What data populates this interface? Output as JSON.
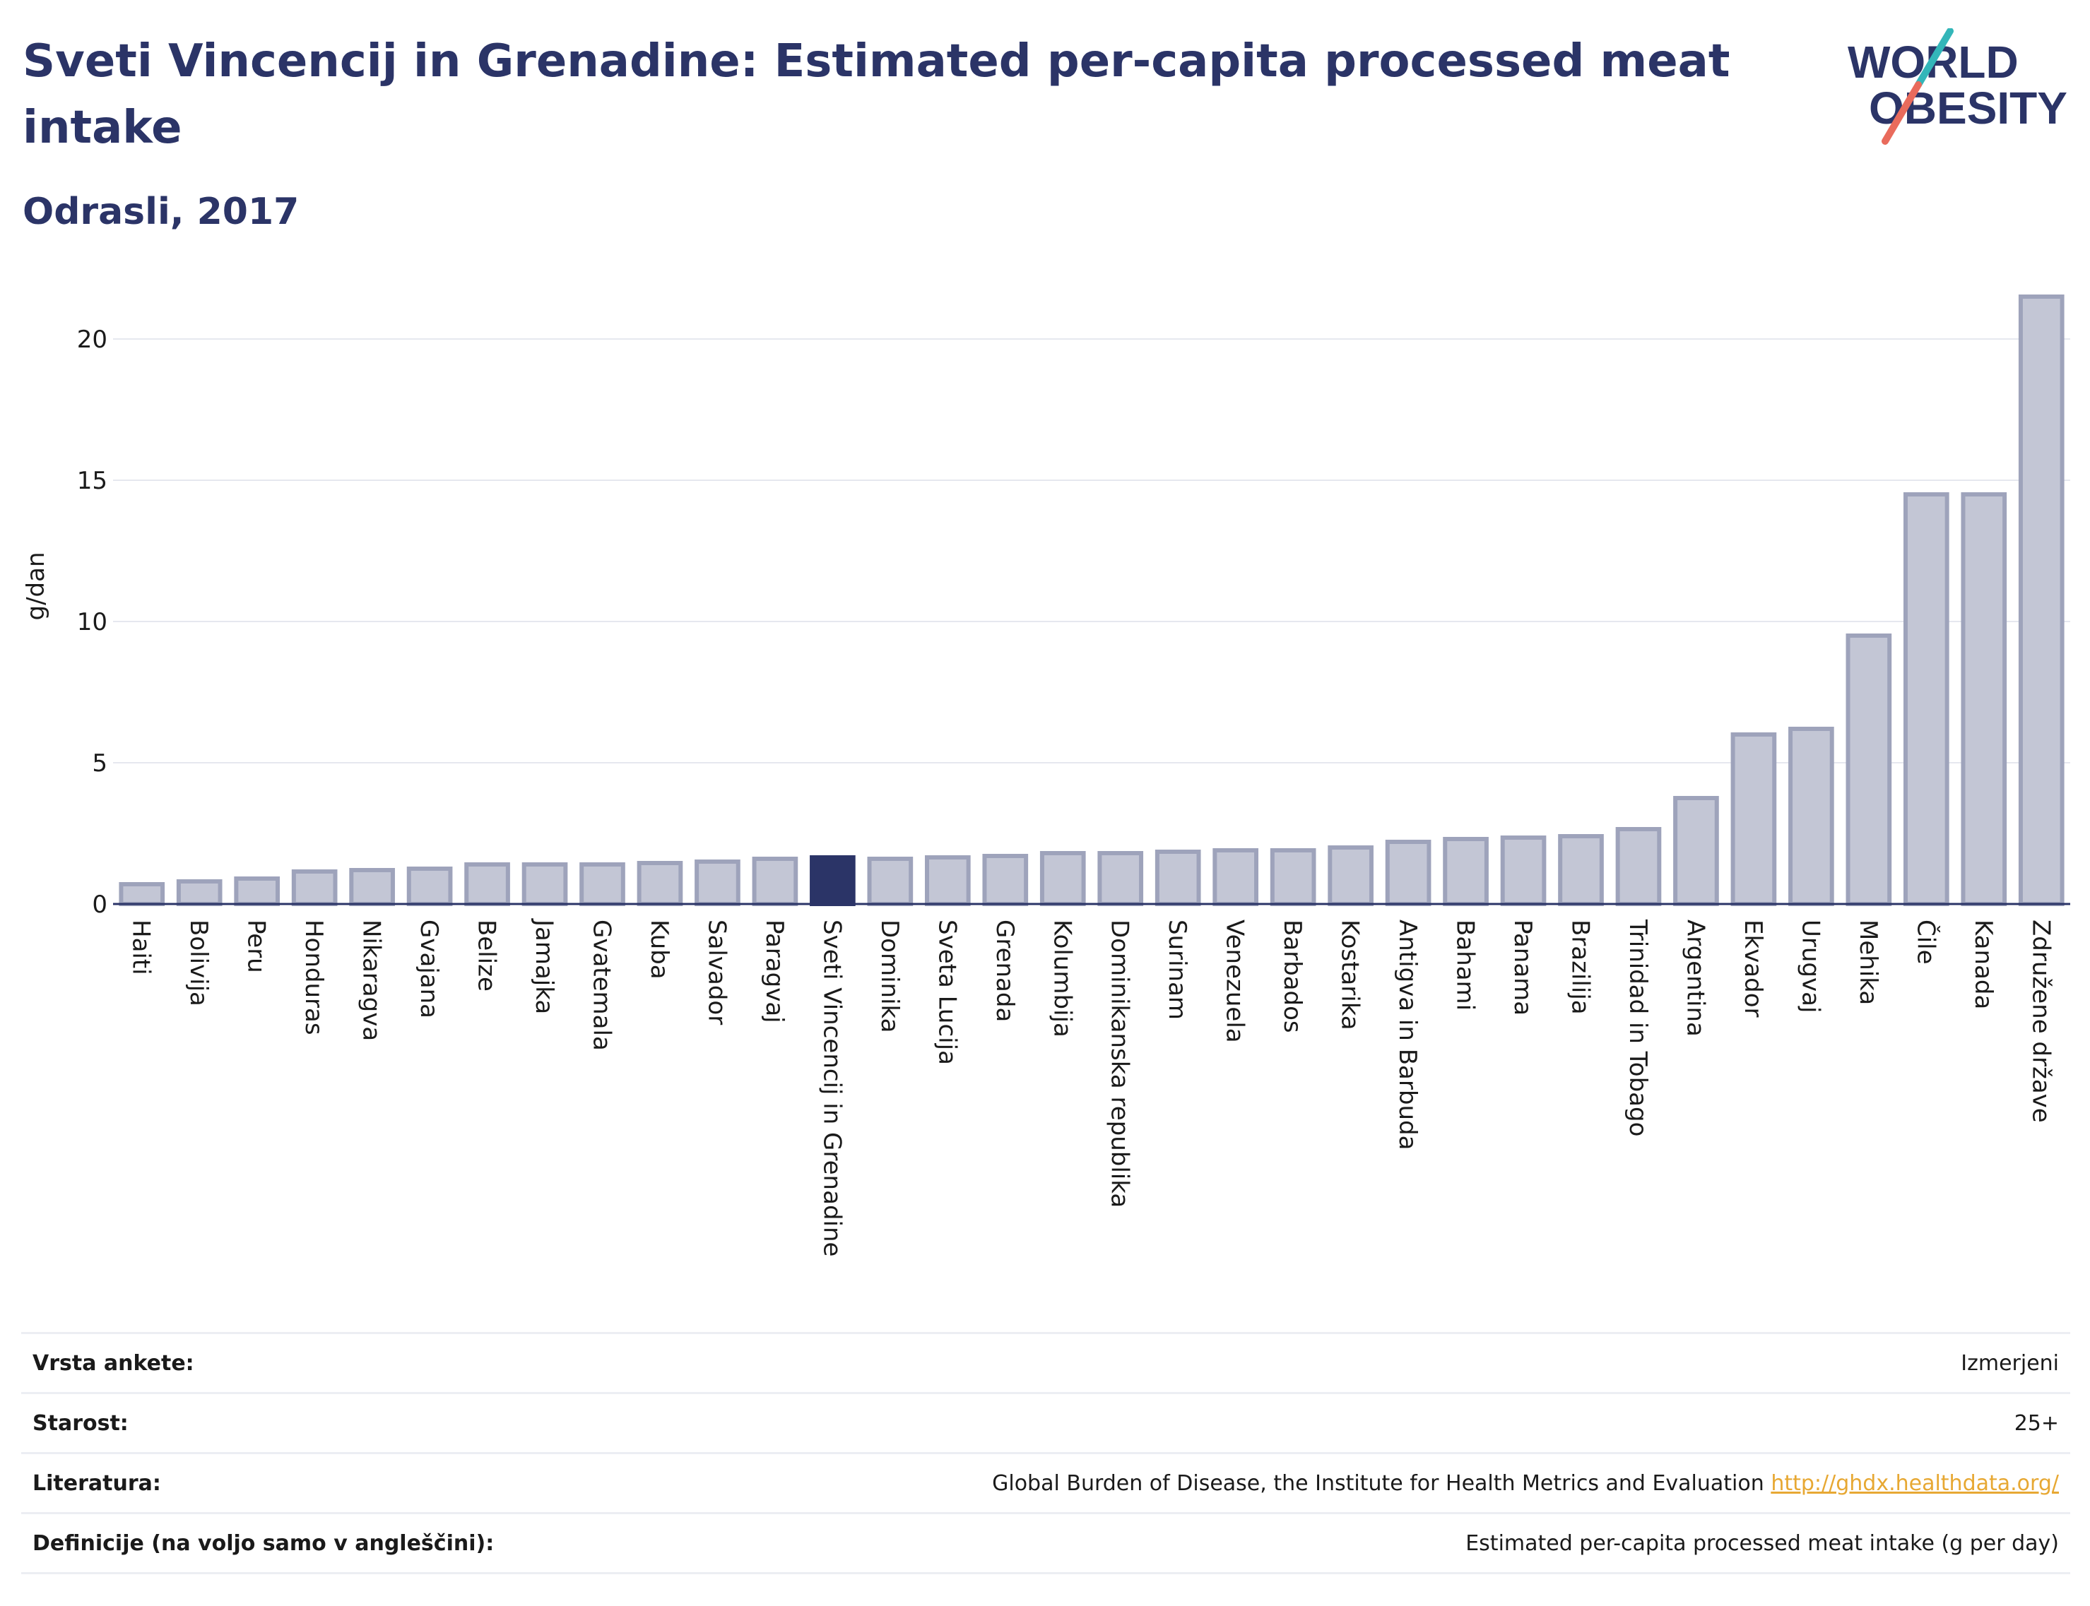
{
  "title": "Sveti Vincencij in Grenadine: Estimated per-capita processed meat intake",
  "subtitle": "Odrasli, 2017",
  "logo": {
    "text_line1": "WORLD",
    "text_line2": "OBESITY"
  },
  "colors": {
    "bar": "#c3c6d5",
    "bar_stroke": "#9ea3bb",
    "highlight": "#2b3467",
    "grid": "#e6e8ef",
    "text": "#2b3467",
    "link": "#e7a833"
  },
  "chart_data": {
    "type": "bar",
    "ylabel": "g/dan",
    "ylim": [
      0,
      22
    ],
    "yticks": [
      0,
      5,
      10,
      15,
      20
    ],
    "grid": true,
    "highlight": "Sveti Vincencij in Grenadine",
    "categories": [
      "Haiti",
      "Bolivija",
      "Peru",
      "Honduras",
      "Nikaragva",
      "Gvajana",
      "Belize",
      "Jamajka",
      "Gvatemala",
      "Kuba",
      "Salvador",
      "Paragvaj",
      "Sveti Vincencij in Grenadine",
      "Dominika",
      "Sveta Lucija",
      "Grenada",
      "Kolumbija",
      "Dominikanska republika",
      "Surinam",
      "Venezuela",
      "Barbados",
      "Kostarika",
      "Antigva in Barbuda",
      "Bahami",
      "Panama",
      "Brazilija",
      "Trinidad in Tobago",
      "Argentina",
      "Ekvador",
      "Urugvaj",
      "Mehika",
      "Čile",
      "Kanada",
      "Združene države"
    ],
    "values": [
      0.7,
      0.8,
      0.9,
      1.15,
      1.2,
      1.25,
      1.4,
      1.4,
      1.4,
      1.45,
      1.5,
      1.6,
      1.65,
      1.6,
      1.65,
      1.7,
      1.8,
      1.8,
      1.85,
      1.9,
      1.9,
      2.0,
      2.2,
      2.3,
      2.35,
      2.4,
      2.65,
      3.75,
      6.0,
      6.2,
      9.5,
      14.5,
      14.5,
      21.5
    ]
  },
  "meta": [
    {
      "label": "Vrsta ankete:",
      "value": "Izmerjeni"
    },
    {
      "label": "Starost:",
      "value": "25+"
    },
    {
      "label": "Literatura:",
      "value": "Global Burden of Disease, the Institute for Health Metrics and Evaluation",
      "link": "http://ghdx.healthdata.org/"
    },
    {
      "label": "Definicije (na voljo samo v angleščini):",
      "value": "Estimated per-capita processed meat intake (g per day)"
    }
  ]
}
